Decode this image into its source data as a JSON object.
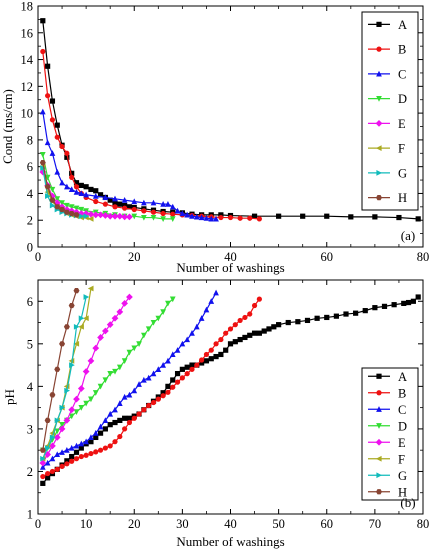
{
  "colors": {
    "A": "#000000",
    "B": "#ee1111",
    "C": "#1111ee",
    "D": "#33dd33",
    "E": "#ee11ee",
    "F": "#aaaa22",
    "G": "#11bbbb",
    "H": "#884433"
  },
  "chart_data": [
    {
      "type": "line",
      "panel_label": "(a)",
      "xlabel": "Number of washings",
      "ylabel": "Cond (ms/cm)",
      "xlim": [
        0,
        80
      ],
      "ylim": [
        0,
        18
      ],
      "xticks": [
        0,
        20,
        40,
        60,
        80
      ],
      "yticks": [
        0,
        2,
        4,
        6,
        8,
        10,
        12,
        14,
        16,
        18
      ],
      "legend_position": "top-right",
      "series": [
        {
          "name": "A",
          "marker": "square",
          "x": [
            1,
            2,
            3,
            4,
            5,
            6,
            7,
            8,
            9,
            10,
            11,
            12,
            13,
            14,
            15,
            16,
            17,
            18,
            19,
            20,
            22,
            24,
            26,
            28,
            30,
            32,
            34,
            36,
            38,
            40,
            45,
            50,
            55,
            60,
            65,
            70,
            75,
            79
          ],
          "y": [
            16.9,
            13.5,
            10.9,
            9.1,
            7.6,
            6.7,
            5.5,
            4.8,
            4.6,
            4.5,
            4.3,
            4.2,
            3.9,
            3.7,
            3.5,
            3.3,
            3.2,
            3.1,
            3.0,
            2.95,
            2.85,
            2.75,
            2.65,
            2.6,
            2.55,
            2.45,
            2.4,
            2.4,
            2.4,
            2.35,
            2.3,
            2.3,
            2.3,
            2.3,
            2.25,
            2.25,
            2.2,
            2.1
          ]
        },
        {
          "name": "B",
          "marker": "circle",
          "x": [
            1,
            2,
            3,
            4,
            5,
            6,
            7,
            8,
            9,
            10,
            12,
            14,
            16,
            18,
            20,
            22,
            24,
            26,
            28,
            30,
            32,
            34,
            36,
            38,
            40,
            42,
            44,
            46
          ],
          "y": [
            14.6,
            11.3,
            9.5,
            8.2,
            7.5,
            7.0,
            5.2,
            4.5,
            4.0,
            3.7,
            3.4,
            3.2,
            3.0,
            2.9,
            2.8,
            2.7,
            2.6,
            2.5,
            2.45,
            2.4,
            2.35,
            2.3,
            2.25,
            2.2,
            2.2,
            2.15,
            2.15,
            2.1
          ]
        },
        {
          "name": "C",
          "marker": "triangle-up",
          "x": [
            1,
            2,
            3,
            4,
            5,
            6,
            7,
            8,
            9,
            10,
            12,
            14,
            16,
            18,
            20,
            22,
            24,
            26,
            27,
            28,
            29,
            30,
            31,
            32,
            33,
            34,
            35,
            36,
            37
          ],
          "y": [
            10.1,
            7.8,
            7.0,
            5.6,
            4.8,
            4.5,
            4.3,
            4.1,
            4.0,
            3.9,
            3.8,
            3.7,
            3.6,
            3.5,
            3.4,
            3.3,
            3.3,
            3.2,
            3.2,
            3.0,
            2.7,
            2.5,
            2.4,
            2.3,
            2.25,
            2.2,
            2.15,
            2.1,
            2.1
          ]
        },
        {
          "name": "D",
          "marker": "triangle-down",
          "x": [
            1,
            2,
            3,
            4,
            5,
            6,
            7,
            8,
            9,
            10,
            12,
            14,
            16,
            18,
            20,
            22,
            24,
            26,
            28
          ],
          "y": [
            6.9,
            5.2,
            4.3,
            3.6,
            3.3,
            3.1,
            3.0,
            2.9,
            2.8,
            2.7,
            2.6,
            2.5,
            2.4,
            2.3,
            2.3,
            2.2,
            2.2,
            2.1,
            2.1
          ]
        },
        {
          "name": "E",
          "marker": "diamond",
          "x": [
            1,
            2,
            3,
            4,
            5,
            6,
            7,
            8,
            9,
            10,
            11,
            12,
            13,
            14,
            15,
            16,
            17,
            18,
            19
          ],
          "y": [
            5.6,
            4.6,
            3.8,
            3.3,
            3.0,
            2.8,
            2.7,
            2.6,
            2.5,
            2.5,
            2.45,
            2.4,
            2.4,
            2.35,
            2.3,
            2.3,
            2.3,
            2.25,
            2.25
          ]
        },
        {
          "name": "F",
          "marker": "triangle-left",
          "x": [
            1,
            2,
            3,
            4,
            5,
            6,
            7,
            8,
            9,
            10,
            11
          ],
          "y": [
            6.0,
            4.1,
            3.4,
            3.0,
            2.7,
            2.5,
            2.4,
            2.3,
            2.2,
            2.2,
            2.1
          ]
        },
        {
          "name": "G",
          "marker": "triangle-right",
          "x": [
            1,
            2,
            3,
            4,
            5,
            6,
            7,
            8,
            9,
            10
          ],
          "y": [
            5.9,
            3.8,
            3.1,
            2.8,
            2.6,
            2.5,
            2.4,
            2.35,
            2.3,
            2.3
          ]
        },
        {
          "name": "H",
          "marker": "hexagon",
          "x": [
            1,
            2,
            3,
            4,
            5,
            6,
            7,
            8
          ],
          "y": [
            6.3,
            4.5,
            3.5,
            3.0,
            2.8,
            2.6,
            2.5,
            2.4
          ]
        }
      ]
    },
    {
      "type": "line",
      "panel_label": "(b)",
      "xlabel": "Number of washings",
      "ylabel": "pH",
      "xlim": [
        0,
        80
      ],
      "ylim": [
        1,
        6.5
      ],
      "xticks": [
        0,
        10,
        20,
        30,
        40,
        50,
        60,
        70,
        80
      ],
      "yticks": [
        1,
        2,
        3,
        4,
        5,
        6
      ],
      "legend_position": "bottom-right",
      "series": [
        {
          "name": "A",
          "marker": "square",
          "x": [
            1,
            2,
            3,
            4,
            5,
            6,
            7,
            8,
            9,
            10,
            11,
            12,
            13,
            14,
            15,
            16,
            17,
            18,
            19,
            20,
            21,
            22,
            23,
            24,
            25,
            26,
            27,
            28,
            29,
            30,
            31,
            32,
            33,
            34,
            35,
            36,
            37,
            38,
            39,
            40,
            41,
            42,
            43,
            44,
            45,
            46,
            47,
            48,
            49,
            50,
            52,
            54,
            56,
            58,
            60,
            62,
            64,
            66,
            68,
            70,
            72,
            74,
            76,
            77,
            78,
            79
          ],
          "y": [
            1.72,
            1.85,
            1.95,
            2.05,
            2.15,
            2.25,
            2.35,
            2.45,
            2.55,
            2.65,
            2.7,
            2.8,
            2.9,
            3.0,
            3.1,
            3.15,
            3.2,
            3.25,
            3.25,
            3.3,
            3.35,
            3.45,
            3.55,
            3.65,
            3.75,
            3.85,
            4.0,
            4.15,
            4.3,
            4.4,
            4.45,
            4.5,
            4.5,
            4.55,
            4.6,
            4.65,
            4.7,
            4.75,
            4.85,
            5.0,
            5.05,
            5.1,
            5.15,
            5.2,
            5.25,
            5.25,
            5.3,
            5.35,
            5.4,
            5.45,
            5.5,
            5.52,
            5.55,
            5.6,
            5.62,
            5.65,
            5.7,
            5.72,
            5.78,
            5.85,
            5.88,
            5.92,
            5.95,
            5.97,
            6.0,
            6.1
          ]
        },
        {
          "name": "B",
          "marker": "circle",
          "x": [
            1,
            2,
            3,
            4,
            5,
            6,
            7,
            8,
            9,
            10,
            11,
            12,
            13,
            14,
            15,
            16,
            17,
            18,
            19,
            20,
            21,
            22,
            23,
            24,
            25,
            26,
            27,
            28,
            29,
            30,
            31,
            32,
            33,
            34,
            35,
            36,
            37,
            38,
            39,
            40,
            41,
            42,
            43,
            44,
            45,
            46
          ],
          "y": [
            1.88,
            1.95,
            2.0,
            2.05,
            2.12,
            2.18,
            2.24,
            2.3,
            2.35,
            2.38,
            2.42,
            2.46,
            2.5,
            2.55,
            2.6,
            2.7,
            2.82,
            3.0,
            3.15,
            3.25,
            3.35,
            3.45,
            3.55,
            3.62,
            3.7,
            3.78,
            3.86,
            3.98,
            4.1,
            4.2,
            4.3,
            4.4,
            4.5,
            4.62,
            4.75,
            4.85,
            5.0,
            5.1,
            5.25,
            5.35,
            5.45,
            5.55,
            5.62,
            5.7,
            5.9,
            6.05
          ]
        },
        {
          "name": "C",
          "marker": "triangle-up",
          "x": [
            1,
            2,
            3,
            4,
            5,
            6,
            7,
            8,
            9,
            10,
            11,
            12,
            13,
            14,
            15,
            16,
            17,
            18,
            19,
            20,
            21,
            22,
            23,
            24,
            25,
            26,
            27,
            28,
            29,
            30,
            31,
            32,
            33,
            34,
            35,
            36,
            37
          ],
          "y": [
            2.1,
            2.2,
            2.3,
            2.4,
            2.45,
            2.5,
            2.55,
            2.6,
            2.65,
            2.7,
            2.8,
            2.9,
            3.05,
            3.2,
            3.35,
            3.45,
            3.6,
            3.75,
            3.8,
            3.9,
            4.05,
            4.15,
            4.2,
            4.3,
            4.4,
            4.5,
            4.6,
            4.75,
            4.85,
            5.0,
            5.1,
            5.25,
            5.4,
            5.6,
            5.8,
            6.0,
            6.2
          ]
        },
        {
          "name": "D",
          "marker": "triangle-down",
          "x": [
            1,
            2,
            3,
            4,
            5,
            6,
            7,
            8,
            9,
            10,
            11,
            12,
            13,
            14,
            15,
            16,
            17,
            18,
            19,
            20,
            21,
            22,
            23,
            24,
            25,
            26,
            27,
            28
          ],
          "y": [
            2.5,
            2.55,
            2.75,
            2.95,
            3.1,
            3.2,
            3.3,
            3.4,
            3.5,
            3.6,
            3.7,
            3.85,
            4.0,
            4.15,
            4.3,
            4.35,
            4.45,
            4.6,
            4.8,
            4.9,
            5.0,
            5.2,
            5.35,
            5.5,
            5.6,
            5.75,
            5.95,
            6.05
          ]
        },
        {
          "name": "E",
          "marker": "diamond",
          "x": [
            1,
            2,
            3,
            4,
            5,
            6,
            7,
            8,
            9,
            10,
            11,
            12,
            13,
            14,
            15,
            16,
            17,
            18,
            19
          ],
          "y": [
            2.2,
            2.4,
            2.6,
            2.8,
            3.0,
            3.2,
            3.45,
            3.7,
            3.95,
            4.35,
            4.6,
            4.9,
            5.15,
            5.3,
            5.45,
            5.6,
            5.75,
            5.95,
            6.1
          ]
        },
        {
          "name": "F",
          "marker": "triangle-left",
          "x": [
            1,
            2,
            3,
            4,
            5,
            6,
            7,
            8,
            9,
            10,
            11
          ],
          "y": [
            2.3,
            2.6,
            2.9,
            3.2,
            3.5,
            4.0,
            4.6,
            5.0,
            5.4,
            5.6,
            6.3
          ]
        },
        {
          "name": "G",
          "marker": "triangle-right",
          "x": [
            1,
            2,
            3,
            4,
            5,
            6,
            7,
            8,
            9,
            10
          ],
          "y": [
            2.3,
            2.55,
            2.8,
            3.2,
            3.5,
            3.9,
            4.5,
            5.4,
            5.6,
            6.1
          ]
        },
        {
          "name": "H",
          "marker": "hexagon",
          "x": [
            1,
            2,
            3,
            4,
            5,
            6,
            7,
            8
          ],
          "y": [
            2.5,
            3.2,
            3.8,
            4.4,
            5.0,
            5.4,
            5.9,
            6.25
          ]
        }
      ]
    }
  ]
}
